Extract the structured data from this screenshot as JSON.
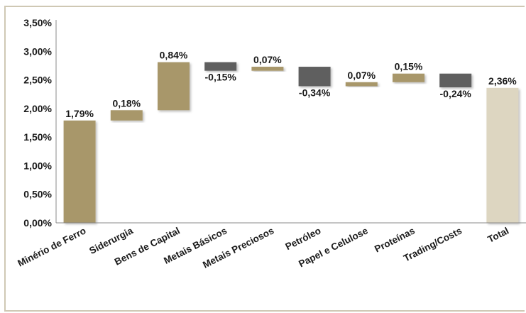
{
  "chart_data": {
    "type": "waterfall",
    "title": "",
    "xlabel": "",
    "ylabel": "",
    "ylim": [
      0,
      3.5
    ],
    "y_ticks": [
      "0,00%",
      "0,50%",
      "1,00%",
      "1,50%",
      "2,00%",
      "2,50%",
      "3,00%",
      "3,50%"
    ],
    "grid": false,
    "legend": "none",
    "categories": [
      "Minério de Ferro",
      "Siderurgia",
      "Bens de Capital",
      "Metais Básicos",
      "Metais Preciosos",
      "Petróleo",
      "Papel e Celulose",
      "Proteínas",
      "Trading/Costs",
      "Total"
    ],
    "values": [
      1.79,
      0.18,
      0.84,
      -0.15,
      0.07,
      -0.34,
      0.07,
      0.15,
      -0.24,
      2.36
    ],
    "labels": [
      "1,79%",
      "0,18%",
      "0,84%",
      "-0,15%",
      "0,07%",
      "-0,34%",
      "0,07%",
      "0,15%",
      "-0,24%",
      "2,36%"
    ],
    "colors": {
      "increase": "#a8976a",
      "decrease": "#5f5f5f",
      "total": "#ddd6c1",
      "axis": "#8a8a8a"
    }
  }
}
